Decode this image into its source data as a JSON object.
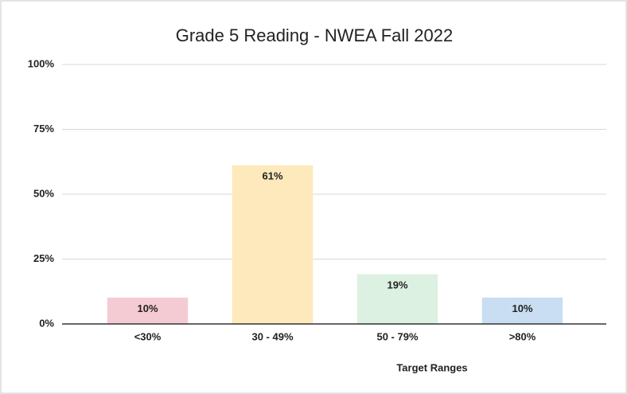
{
  "chart_data": {
    "type": "bar",
    "title": "Grade 5 Reading - NWEA Fall 2022",
    "x_label": "Target Ranges",
    "categories": [
      "<30%",
      "30 - 49%",
      "50 - 79%",
      ">80%"
    ],
    "values": [
      10,
      61,
      19,
      10
    ],
    "value_labels": [
      "10%",
      "61%",
      "19%",
      "10%"
    ],
    "colors": [
      "#f5cbd3",
      "#fde9bb",
      "#dcf1e1",
      "#c9ddf3"
    ],
    "ylim": [
      0,
      100
    ],
    "yticks": [
      {
        "value": 0,
        "label": "0%"
      },
      {
        "value": 25,
        "label": "25%"
      },
      {
        "value": 50,
        "label": "50%"
      },
      {
        "value": 75,
        "label": "75%"
      },
      {
        "value": 100,
        "label": "100%"
      }
    ],
    "grid": true
  }
}
